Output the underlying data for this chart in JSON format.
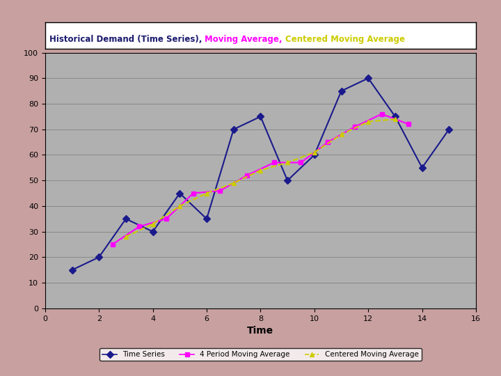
{
  "title_parts": [
    {
      "text": "Historical Demand (Time Series), ",
      "color": "#1a1a6e"
    },
    {
      "text": "Moving Average, ",
      "color": "#ff00ff"
    },
    {
      "text": "Centered Moving Average",
      "color": "#cccc00"
    }
  ],
  "xlabel": "Time",
  "xlim": [
    0,
    16
  ],
  "ylim": [
    0,
    100
  ],
  "yticks": [
    0,
    10,
    20,
    30,
    40,
    50,
    60,
    70,
    80,
    90,
    100
  ],
  "xticks": [
    0,
    2,
    4,
    6,
    8,
    10,
    12,
    14,
    16
  ],
  "time_series_x": [
    1,
    2,
    3,
    4,
    5,
    6,
    7,
    8,
    9,
    10,
    11,
    12,
    13,
    14,
    15
  ],
  "time_series_y": [
    15,
    20,
    35,
    30,
    45,
    35,
    70,
    75,
    50,
    60,
    85,
    90,
    75,
    55,
    70
  ],
  "time_series_color": "#1a1a8c",
  "time_series_marker": "D",
  "moving_avg_x": [
    2.5,
    3.5,
    4.5,
    5.5,
    6.5,
    7.5,
    8.5,
    9.5,
    10.5,
    11.5,
    12.5,
    13.5
  ],
  "moving_avg_y": [
    25,
    32,
    35,
    45,
    46,
    52,
    57,
    57,
    65,
    71,
    76,
    72
  ],
  "moving_avg_color": "#ff00ff",
  "moving_avg_marker": "s",
  "centered_ma_x": [
    3,
    4,
    5,
    6,
    7,
    8,
    9,
    10,
    11,
    12,
    13
  ],
  "centered_ma_y": [
    28,
    33,
    40,
    45,
    49,
    54,
    57,
    61,
    68,
    73,
    74
  ],
  "centered_ma_color": "#cccc00",
  "centered_ma_marker": "^",
  "background_color": "#c8a0a0",
  "plot_bg_color": "#b0b0b0",
  "legend_labels": [
    "Time Series",
    "4 Period Moving Average",
    "Centered Moving Average"
  ],
  "grid_color": "#888888",
  "title_box_color": "white"
}
